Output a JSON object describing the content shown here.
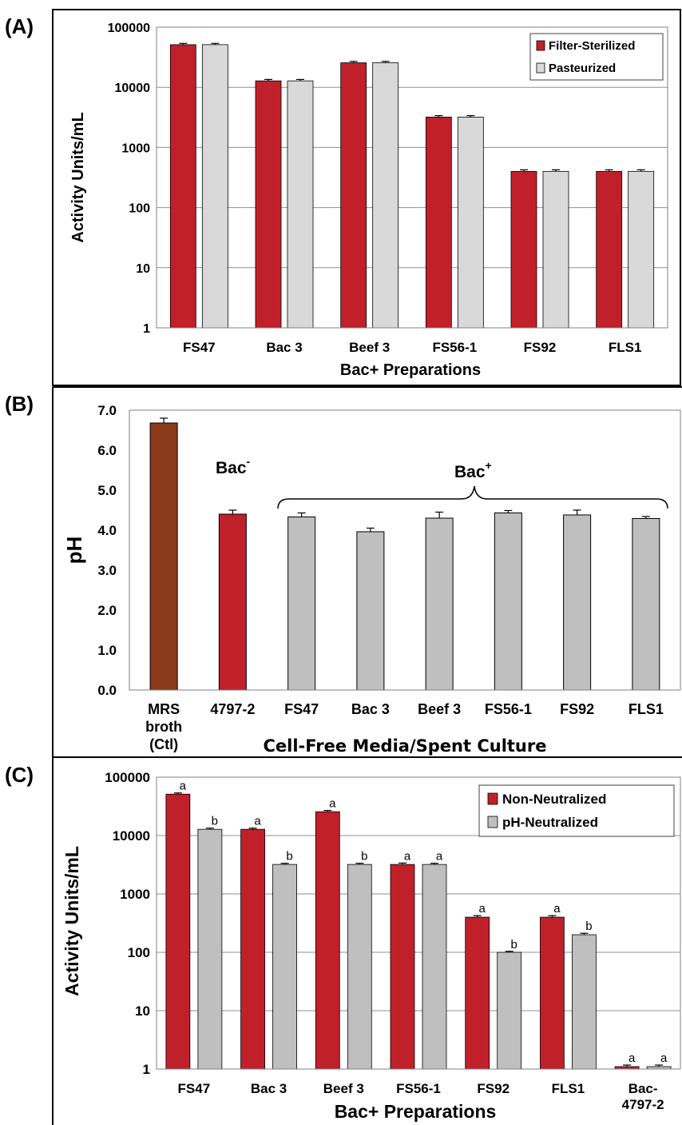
{
  "colors": {
    "red": "#C0202A",
    "grey": "#BFBFBF",
    "light_grey": "#D9D9D9",
    "brown": "#8B3A1A"
  },
  "chart_data": [
    {
      "panel": "(A)",
      "type": "bar",
      "categories": [
        "FS47",
        "Bac 3",
        "Beef 3",
        "FS56-1",
        "FS92",
        "FLS1"
      ],
      "series": [
        {
          "name": "Filter-Sterilized",
          "values": [
            51200,
            12800,
            25600,
            3200,
            400,
            400
          ]
        },
        {
          "name": "Pasteurized",
          "values": [
            51200,
            12800,
            25600,
            3200,
            400,
            400
          ]
        }
      ],
      "error": [
        [
          2500,
          700,
          1400,
          180,
          25,
          25
        ],
        [
          2500,
          700,
          1400,
          180,
          25,
          25
        ]
      ],
      "yscale": "log",
      "ylim": [
        1,
        100000
      ],
      "yticks": [
        "1",
        "10",
        "100",
        "1000",
        "10000",
        "100000"
      ],
      "xlabel": "Bac+ Preparations",
      "ylabel": "Activity Units/mL",
      "grid": true,
      "legend": "top-right"
    },
    {
      "panel": "(B)",
      "type": "bar",
      "categories": [
        [
          "MRS",
          "broth",
          "(Ctl)"
        ],
        [
          "4797-2"
        ],
        [
          "FS47"
        ],
        [
          "Bac 3"
        ],
        [
          "Beef 3"
        ],
        [
          "FS56-1"
        ],
        [
          "FS92"
        ],
        [
          "FLS1"
        ]
      ],
      "values": [
        6.68,
        4.4,
        4.33,
        3.96,
        4.3,
        4.43,
        4.38,
        4.29
      ],
      "error": [
        0.12,
        0.1,
        0.1,
        0.09,
        0.15,
        0.06,
        0.12,
        0.05
      ],
      "bar_colors": [
        "#8B3A1A",
        "#C0202A",
        "#BFBFBF",
        "#BFBFBF",
        "#BFBFBF",
        "#BFBFBF",
        "#BFBFBF",
        "#BFBFBF"
      ],
      "ylim": [
        0,
        7
      ],
      "yticks": [
        "0.0",
        "1.0",
        "2.0",
        "3.0",
        "4.0",
        "5.0",
        "6.0",
        "7.0"
      ],
      "xlabel": "Cell-Free Media/Spent Culture",
      "ylabel": "pH",
      "grid": false,
      "annotations": [
        {
          "text": "Bac",
          "sup": "-"
        },
        {
          "text": "Bac",
          "sup": "+"
        }
      ]
    },
    {
      "panel": "(C)",
      "type": "bar",
      "categories": [
        [
          "FS47"
        ],
        [
          "Bac 3"
        ],
        [
          "Beef 3"
        ],
        [
          "FS56-1"
        ],
        [
          "FS92"
        ],
        [
          "FLS1"
        ],
        [
          "Bac-",
          "4797-2"
        ]
      ],
      "series": [
        {
          "name": "Non-Neutralized",
          "values": [
            51200,
            12800,
            25600,
            3200,
            400,
            400,
            1.1
          ],
          "letters": [
            "a",
            "a",
            "a",
            "a",
            "a",
            "a",
            "a"
          ]
        },
        {
          "name": "pH-Neutralized",
          "values": [
            12800,
            3200,
            3200,
            3200,
            100,
            200,
            1.1
          ],
          "letters": [
            "b",
            "b",
            "b",
            "a",
            "b",
            "b",
            "a"
          ]
        }
      ],
      "error": [
        [
          2500,
          600,
          1300,
          180,
          25,
          25,
          0.07
        ],
        [
          600,
          150,
          150,
          150,
          4,
          12,
          0.07
        ]
      ],
      "yscale": "log",
      "ylim": [
        1,
        100000
      ],
      "yticks": [
        "1",
        "10",
        "100",
        "1000",
        "10000",
        "100000"
      ],
      "xlabel": "Bac+ Preparations",
      "ylabel": "Activity Units/mL",
      "grid": true,
      "legend": "top-right"
    }
  ]
}
